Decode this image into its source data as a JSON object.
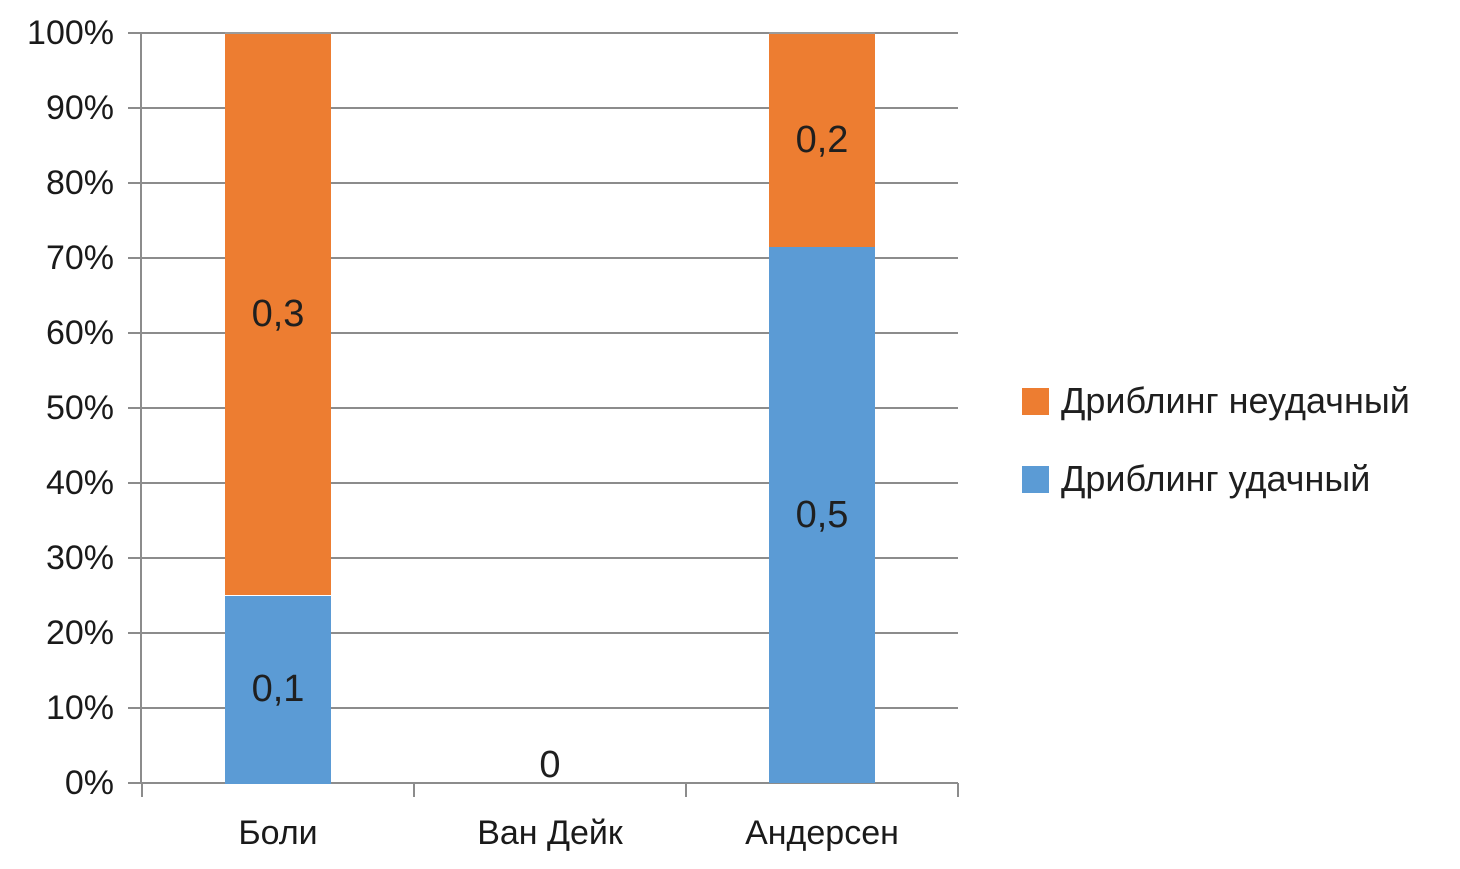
{
  "chart_data": {
    "type": "bar",
    "subtype": "percent-stacked-column",
    "title": "",
    "xlabel": "",
    "ylabel": "",
    "categories": [
      "Боли",
      "Ван Дейк",
      "Андерсен"
    ],
    "series": [
      {
        "name": "Дриблинг удачный",
        "color": "#5B9BD5",
        "values": [
          0.1,
          0,
          0.5
        ],
        "value_labels": [
          "0,1",
          "0",
          "0,5"
        ]
      },
      {
        "name": "Дриблинг неудачный",
        "color": "#ED7D31",
        "values": [
          0.3,
          0,
          0.2
        ],
        "value_labels": [
          "0,3",
          "",
          "0,2"
        ]
      }
    ],
    "stack_fractions": {
      "Боли": {
        "Дриблинг удачный": 0.25,
        "Дриблинг неудачный": 0.75
      },
      "Ван Дейк": {
        "Дриблинг удачный": 0,
        "Дриблинг неудачный": 0
      },
      "Андерсен": {
        "Дриблинг удачный": 0.714,
        "Дриблинг неудачный": 0.286
      }
    },
    "legend_order": [
      1,
      0
    ],
    "legend_position": "right",
    "y_axis": {
      "min": 0,
      "max": 1,
      "ticks": [
        "0%",
        "10%",
        "20%",
        "30%",
        "40%",
        "50%",
        "60%",
        "70%",
        "80%",
        "90%",
        "100%"
      ]
    },
    "grid": true,
    "colors": {
      "gridline": "#8C8C8C",
      "axis": "#8C8C8C",
      "segment_divider": "#9B9B9B",
      "label_text": "#1F1F1F",
      "background": "#FFFFFF"
    }
  }
}
